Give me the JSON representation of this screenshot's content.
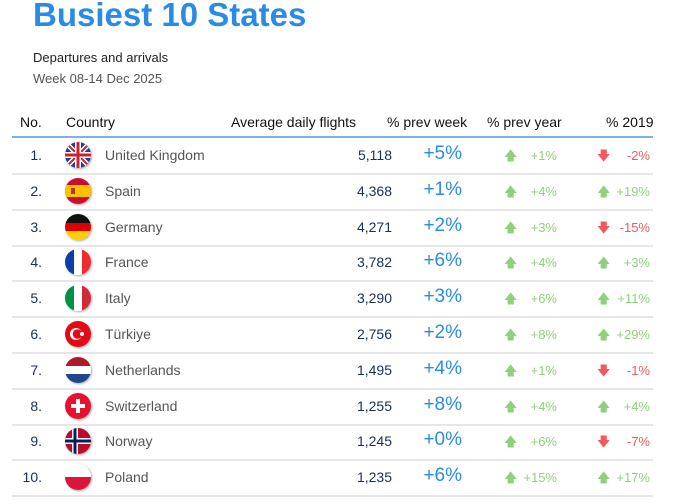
{
  "title": "Busiest 10 States",
  "subtitle": "Departures and arrivals",
  "week": "Week 08-14 Dec 2025",
  "colors": {
    "accent": "#2a8be6",
    "up": "#8fd17a",
    "down": "#f2585c"
  },
  "headers": {
    "no": "No.",
    "country": "Country",
    "flights": "Average daily flights",
    "prev_week": "% prev week",
    "prev_year": "% prev year",
    "y2019": "% 2019"
  },
  "rows": [
    {
      "no": "1.",
      "country": "United Kingdom",
      "flag": "uk",
      "flights": "5,118",
      "prev_week": "+5%",
      "prev_year": "+1%",
      "y2019": "-2%"
    },
    {
      "no": "2.",
      "country": "Spain",
      "flag": "es",
      "flights": "4,368",
      "prev_week": "+1%",
      "prev_year": "+4%",
      "y2019": "+19%"
    },
    {
      "no": "3.",
      "country": "Germany",
      "flag": "de",
      "flights": "4,271",
      "prev_week": "+2%",
      "prev_year": "+3%",
      "y2019": "-15%"
    },
    {
      "no": "4.",
      "country": "France",
      "flag": "fr",
      "flights": "3,782",
      "prev_week": "+6%",
      "prev_year": "+4%",
      "y2019": "+3%"
    },
    {
      "no": "5.",
      "country": "Italy",
      "flag": "it",
      "flights": "3,290",
      "prev_week": "+3%",
      "prev_year": "+6%",
      "y2019": "+11%"
    },
    {
      "no": "6.",
      "country": "Türkiye",
      "flag": "tr",
      "flights": "2,756",
      "prev_week": "+2%",
      "prev_year": "+8%",
      "y2019": "+29%"
    },
    {
      "no": "7.",
      "country": "Netherlands",
      "flag": "nl",
      "flights": "1,495",
      "prev_week": "+4%",
      "prev_year": "+1%",
      "y2019": "-1%"
    },
    {
      "no": "8.",
      "country": "Switzerland",
      "flag": "ch",
      "flights": "1,255",
      "prev_week": "+8%",
      "prev_year": "+4%",
      "y2019": "+4%"
    },
    {
      "no": "9.",
      "country": "Norway",
      "flag": "no",
      "flights": "1,245",
      "prev_week": "+0%",
      "prev_year": "+6%",
      "y2019": "-7%"
    },
    {
      "no": "10.",
      "country": "Poland",
      "flag": "pl",
      "flights": "1,235",
      "prev_week": "+6%",
      "prev_year": "+15%",
      "y2019": "+17%"
    }
  ]
}
